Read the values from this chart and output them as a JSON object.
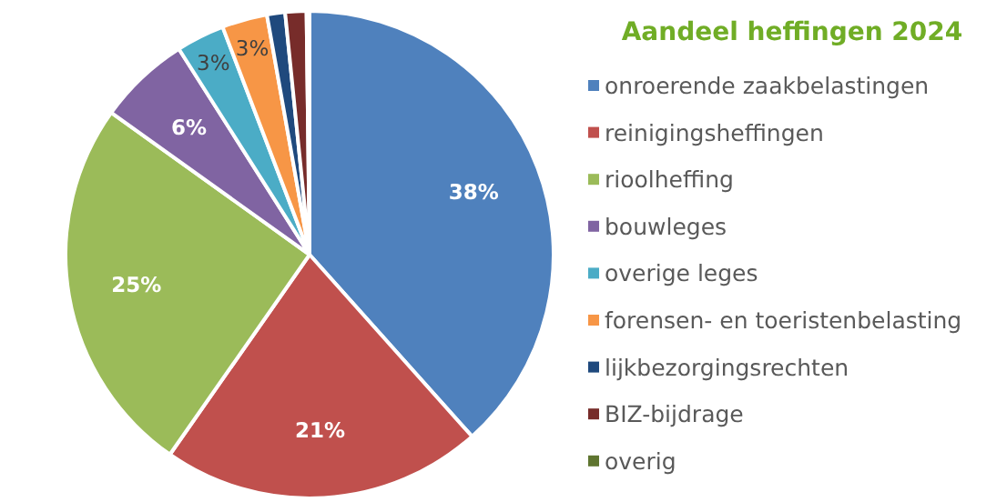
{
  "chart_data": {
    "type": "pie",
    "title": "Aandeel heffingen 2024",
    "categories": [
      "onroerende zaakbelastingen",
      "reinigingsheffingen",
      "rioolheffing",
      "bouwleges",
      "overige leges",
      "forensen- en toeristenbelasting",
      "lijkbezorgingsrechten",
      "BIZ-bijdrage",
      "overig"
    ],
    "values": [
      38.4,
      21.3,
      25.2,
      6.1,
      3.2,
      3.0,
      1.2,
      1.4,
      0.2
    ],
    "value_labels": [
      "38%",
      "21%",
      "25%",
      "6%",
      "3%",
      "3%",
      null,
      null,
      null
    ],
    "colors": [
      "#4f81bd",
      "#c0504d",
      "#9bbb59",
      "#8064a2",
      "#4bacc6",
      "#f79646",
      "#1f497d",
      "#772c2a",
      "#5f7530"
    ],
    "legend": "right"
  }
}
